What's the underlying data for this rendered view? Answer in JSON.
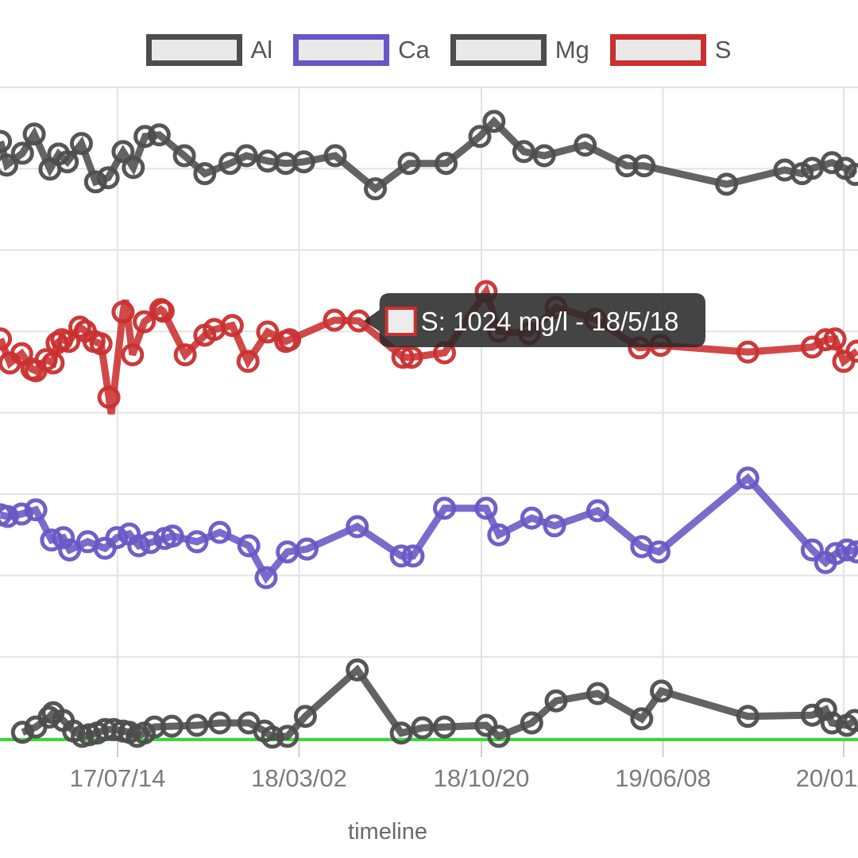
{
  "page": {
    "background": "#ffffff"
  },
  "legend": {
    "position": "top",
    "swatch_fill": "#e9e9e9",
    "items": [
      {
        "label": "Al",
        "color": "#4d4d4d"
      },
      {
        "label": "Ca",
        "color": "#6857c5"
      },
      {
        "label": "Mg",
        "color": "#4d4d4d"
      },
      {
        "label": "S",
        "color": "#c9302f"
      }
    ]
  },
  "tooltip": {
    "text": "S: 1024 mg/l - 18/5/18",
    "series": "S",
    "value_mg_l": 1024,
    "date": "18/5/18",
    "anchor_day": 307,
    "anchor_value": 1024,
    "bg": "rgba(40,40,40,0.87)",
    "swatch_fill": "#ececec",
    "swatch_border": "#c9302f"
  },
  "axes": {
    "x_title": "timeline",
    "x_unit": "days since 2017-07-14",
    "x_ticks": [
      {
        "label": "17/07/14",
        "day": 0
      },
      {
        "label": "18/03/02",
        "day": 231
      },
      {
        "label": "18/10/20",
        "day": 463
      },
      {
        "label": "19/06/08",
        "day": 694
      },
      {
        "label": "20/01/24",
        "day": 924
      }
    ],
    "y_unit": "mg/l",
    "grid": true
  },
  "annotation_line": {
    "value": 0,
    "color": "#38d938"
  },
  "chart_data": {
    "type": "line",
    "x_unit": "days since 2017-07-14",
    "y_unit": "mg/l",
    "legend_position": "top",
    "grid": true,
    "series": [
      {
        "name": "Al",
        "color": "#4d4d4d",
        "points": [
          [
            -149,
            1464
          ],
          [
            -141,
            1406
          ],
          [
            -121,
            1435
          ],
          [
            -106,
            1482
          ],
          [
            -86,
            1396
          ],
          [
            -75,
            1433
          ],
          [
            -64,
            1414
          ],
          [
            -46,
            1459
          ],
          [
            -28,
            1365
          ],
          [
            -12,
            1375
          ],
          [
            7,
            1439
          ],
          [
            20,
            1400
          ],
          [
            35,
            1476
          ],
          [
            53,
            1480
          ],
          [
            85,
            1429
          ],
          [
            111,
            1385
          ],
          [
            143,
            1410
          ],
          [
            164,
            1429
          ],
          [
            191,
            1416
          ],
          [
            214,
            1410
          ],
          [
            237,
            1414
          ],
          [
            277,
            1429
          ],
          [
            328,
            1348
          ],
          [
            371,
            1410
          ],
          [
            418,
            1410
          ],
          [
            461,
            1476
          ],
          [
            479,
            1513
          ],
          [
            517,
            1439
          ],
          [
            543,
            1429
          ],
          [
            595,
            1455
          ],
          [
            648,
            1404
          ],
          [
            670,
            1404
          ],
          [
            775,
            1359
          ],
          [
            849,
            1394
          ],
          [
            871,
            1385
          ],
          [
            884,
            1398
          ],
          [
            909,
            1412
          ],
          [
            926,
            1398
          ],
          [
            939,
            1383
          ]
        ]
      },
      {
        "name": "S",
        "color": "#c9302f",
        "points": [
          [
            -149,
            980
          ],
          [
            -137,
            921
          ],
          [
            -122,
            944
          ],
          [
            -109,
            906
          ],
          [
            -104,
            902
          ],
          [
            -91,
            929
          ],
          [
            -82,
            921
          ],
          [
            -77,
            970
          ],
          [
            -71,
            978
          ],
          [
            -62,
            974
          ],
          [
            -48,
            1009
          ],
          [
            -41,
            999
          ],
          [
            -30,
            974
          ],
          [
            -21,
            968
          ],
          [
            -11,
            837
          ],
          [
            -8,
            796,
            0
          ],
          [
            7,
            1046
          ],
          [
            10,
            1075,
            0
          ],
          [
            19,
            941
          ],
          [
            34,
            1022
          ],
          [
            55,
            1052
          ],
          [
            58,
            1048
          ],
          [
            86,
            941
          ],
          [
            111,
            989
          ],
          [
            123,
            1003
          ],
          [
            146,
            1013
          ],
          [
            166,
            925
          ],
          [
            191,
            997
          ],
          [
            214,
            974
          ],
          [
            219,
            978
          ],
          [
            276,
            1026
          ],
          [
            307,
            1024
          ],
          [
            363,
            935
          ],
          [
            374,
            935
          ],
          [
            416,
            946
          ],
          [
            469,
            1096
          ],
          [
            485,
            999
          ],
          [
            524,
            993
          ],
          [
            558,
            1057
          ],
          [
            608,
            1028
          ],
          [
            664,
            958
          ],
          [
            691,
            964
          ],
          [
            802,
            948
          ],
          [
            884,
            960
          ],
          [
            901,
            978
          ],
          [
            913,
            980
          ],
          [
            924,
            925
          ],
          [
            941,
            950
          ]
        ]
      },
      {
        "name": "Ca",
        "color": "#6857c5",
        "points": [
          [
            -149,
            549
          ],
          [
            -140,
            545
          ],
          [
            -122,
            551
          ],
          [
            -104,
            561
          ],
          [
            -84,
            487
          ],
          [
            -69,
            493
          ],
          [
            -61,
            463
          ],
          [
            -38,
            483
          ],
          [
            -16,
            467
          ],
          [
            -1,
            493
          ],
          [
            15,
            502
          ],
          [
            27,
            473
          ],
          [
            42,
            481
          ],
          [
            60,
            491
          ],
          [
            70,
            497
          ],
          [
            101,
            483
          ],
          [
            130,
            506
          ],
          [
            167,
            473
          ],
          [
            189,
            395
          ],
          [
            216,
            458
          ],
          [
            241,
            465
          ],
          [
            305,
            520
          ],
          [
            361,
            448
          ],
          [
            376,
            448
          ],
          [
            416,
            565
          ],
          [
            469,
            565
          ],
          [
            485,
            500
          ],
          [
            527,
            541
          ],
          [
            556,
            522
          ],
          [
            611,
            559
          ],
          [
            667,
            471
          ],
          [
            689,
            458
          ],
          [
            802,
            639
          ],
          [
            884,
            463
          ],
          [
            901,
            432
          ],
          [
            914,
            454
          ],
          [
            928,
            463
          ],
          [
            941,
            458
          ]
        ]
      },
      {
        "name": "Mg",
        "color": "#4d4d4d",
        "points": [
          [
            -121,
            16
          ],
          [
            -104,
            29
          ],
          [
            -87,
            53
          ],
          [
            -82,
            64
          ],
          [
            -69,
            45
          ],
          [
            -56,
            19
          ],
          [
            -45,
            6
          ],
          [
            -36,
            10
          ],
          [
            -26,
            14
          ],
          [
            -16,
            23
          ],
          [
            -5,
            23
          ],
          [
            7,
            19
          ],
          [
            15,
            16
          ],
          [
            25,
            6
          ],
          [
            34,
            14
          ],
          [
            47,
            29
          ],
          [
            69,
            31
          ],
          [
            101,
            33
          ],
          [
            130,
            39
          ],
          [
            167,
            39
          ],
          [
            187,
            19
          ],
          [
            197,
            4
          ],
          [
            216,
            6
          ],
          [
            239,
            55
          ],
          [
            305,
            169
          ],
          [
            361,
            14
          ],
          [
            388,
            27
          ],
          [
            416,
            29
          ],
          [
            469,
            33
          ],
          [
            485,
            6
          ],
          [
            527,
            39
          ],
          [
            558,
            93
          ],
          [
            611,
            111
          ],
          [
            667,
            49
          ],
          [
            692,
            117
          ],
          [
            802,
            55
          ],
          [
            884,
            58
          ],
          [
            901,
            72
          ],
          [
            909,
            39
          ],
          [
            928,
            33
          ],
          [
            938,
            45
          ]
        ]
      }
    ]
  }
}
